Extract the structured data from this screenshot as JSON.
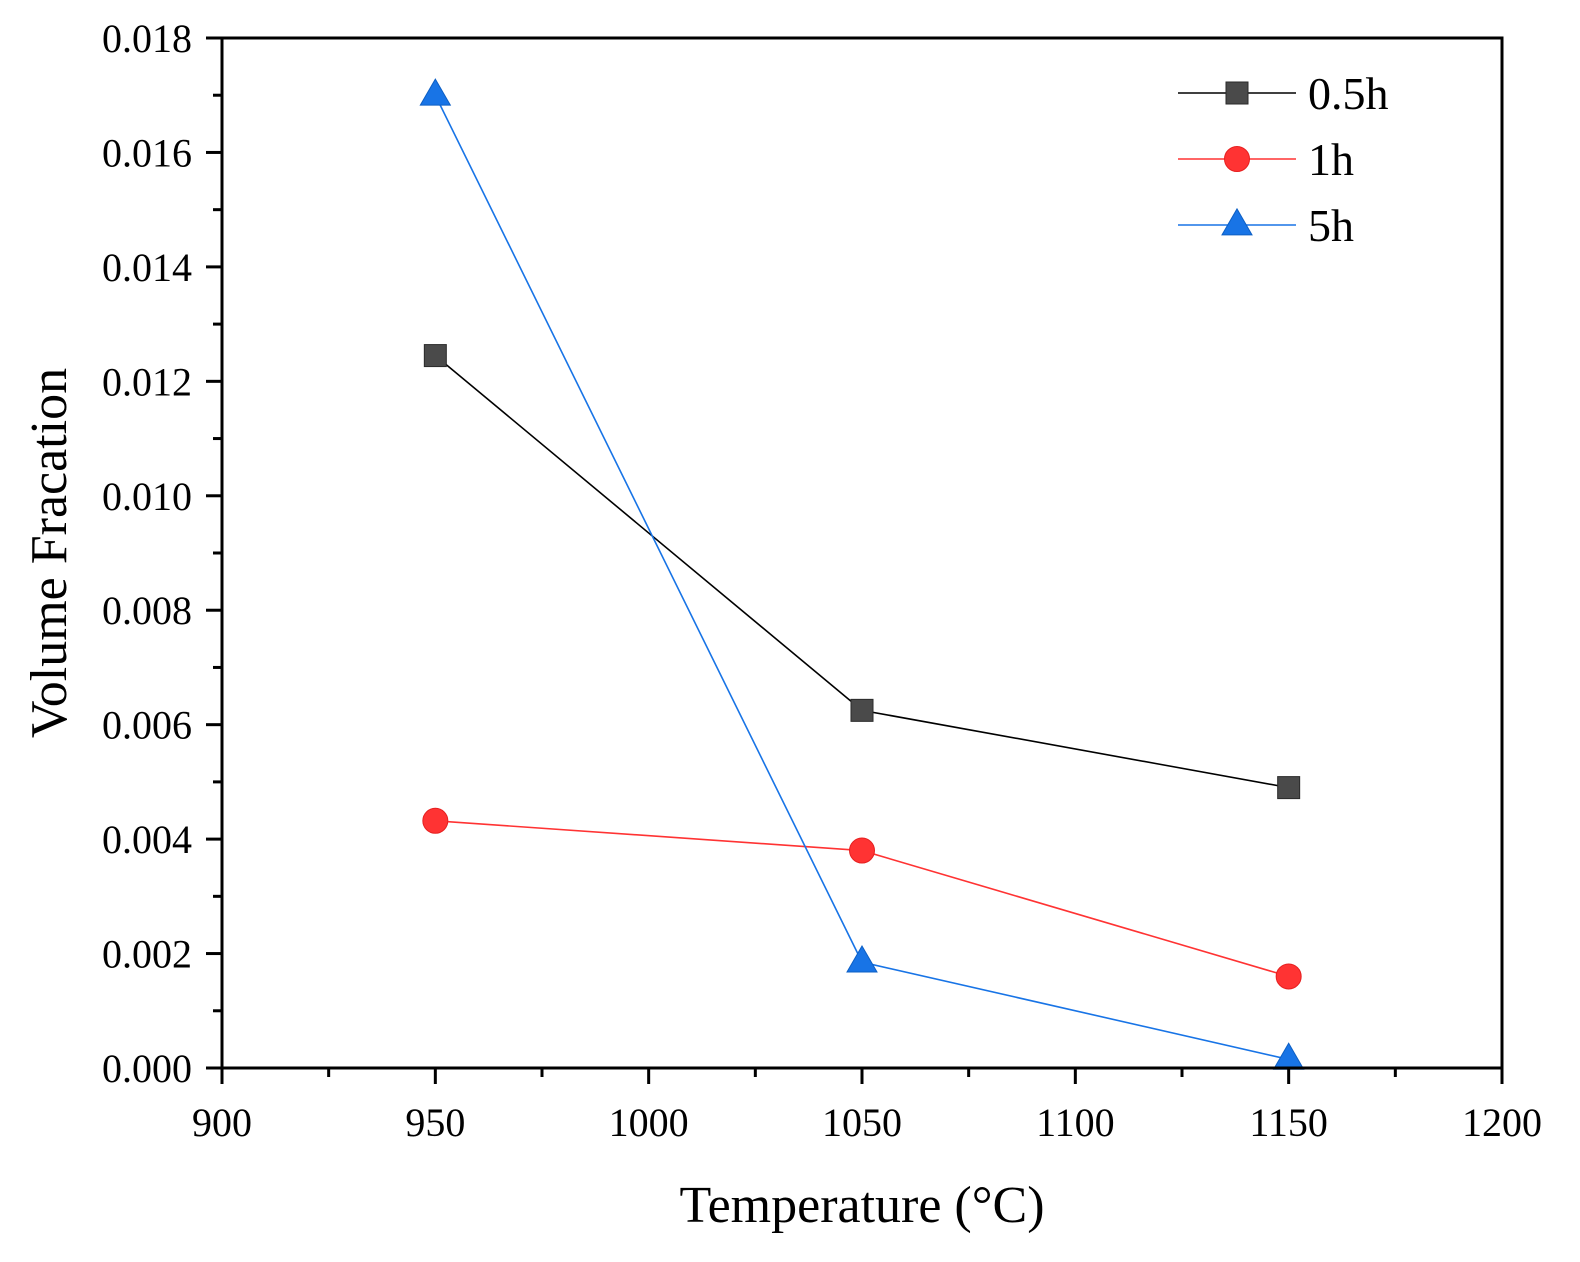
{
  "chart_data": {
    "type": "line",
    "title": "",
    "xlabel": "Temperature (°C)",
    "ylabel": "Volume Fracation",
    "xlim": [
      900,
      1200
    ],
    "ylim": [
      0,
      0.018
    ],
    "xticks": [
      900,
      950,
      1000,
      1050,
      1100,
      1150,
      1200
    ],
    "xtick_labels": [
      "900",
      "950",
      "1000",
      "1050",
      "1100",
      "1150",
      "1200"
    ],
    "yticks": [
      0,
      0.002,
      0.004,
      0.006,
      0.008,
      0.01,
      0.012,
      0.014,
      0.016,
      0.018
    ],
    "ytick_labels": [
      "0.000",
      "0.002",
      "0.004",
      "0.006",
      "0.008",
      "0.010",
      "0.012",
      "0.014",
      "0.016",
      "0.018"
    ],
    "grid": false,
    "legend_position": "top-right",
    "x": [
      950,
      1050,
      1150
    ],
    "series": [
      {
        "name": "0.5h",
        "marker": "square",
        "color": "#4a4a4a",
        "line_color": "#000000",
        "values": [
          0.01245,
          0.00625,
          0.0049
        ]
      },
      {
        "name": "1h",
        "marker": "circle",
        "color": "#ff3333",
        "line_color": "#ff3333",
        "values": [
          0.00432,
          0.0038,
          0.0016
        ]
      },
      {
        "name": "5h",
        "marker": "triangle",
        "color": "#1874e6",
        "line_color": "#1874e6",
        "values": [
          0.017,
          0.00185,
          0.00015
        ]
      }
    ]
  }
}
